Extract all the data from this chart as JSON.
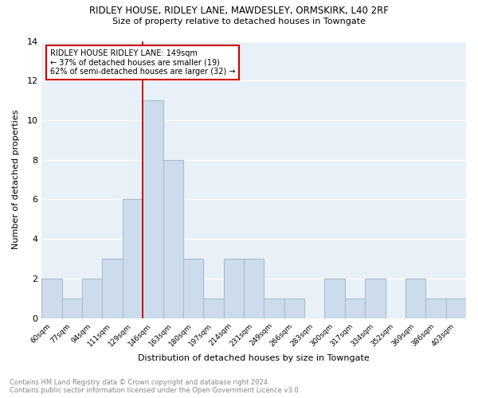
{
  "title": "RIDLEY HOUSE, RIDLEY LANE, MAWDESLEY, ORMSKIRK, L40 2RF",
  "subtitle": "Size of property relative to detached houses in Towngate",
  "xlabel": "Distribution of detached houses by size in Towngate",
  "ylabel": "Number of detached properties",
  "categories": [
    "60sqm",
    "77sqm",
    "94sqm",
    "111sqm",
    "129sqm",
    "146sqm",
    "163sqm",
    "180sqm",
    "197sqm",
    "214sqm",
    "231sqm",
    "249sqm",
    "266sqm",
    "283sqm",
    "300sqm",
    "317sqm",
    "334sqm",
    "352sqm",
    "369sqm",
    "386sqm",
    "403sqm"
  ],
  "values": [
    2,
    1,
    2,
    3,
    6,
    11,
    8,
    3,
    1,
    3,
    3,
    1,
    1,
    0,
    2,
    1,
    2,
    0,
    2,
    1,
    1
  ],
  "bar_color": "#ccdcec",
  "bar_edge_color": "#aabccc",
  "annotation_text": "RIDLEY HOUSE RIDLEY LANE: 149sqm\n← 37% of detached houses are smaller (19)\n62% of semi-detached houses are larger (32) →",
  "annotation_box_color": "#ffffff",
  "annotation_box_edge": "#cc0000",
  "vline_color": "#cc0000",
  "vline_x": 5,
  "ylim": [
    0,
    14
  ],
  "yticks": [
    0,
    2,
    4,
    6,
    8,
    10,
    12,
    14
  ],
  "background_color": "#ffffff",
  "plot_background": "#e8f0f8",
  "grid_color": "#ffffff",
  "footer_line1": "Contains HM Land Registry data © Crown copyright and database right 2024.",
  "footer_line2": "Contains public sector information licensed under the Open Government Licence v3.0."
}
